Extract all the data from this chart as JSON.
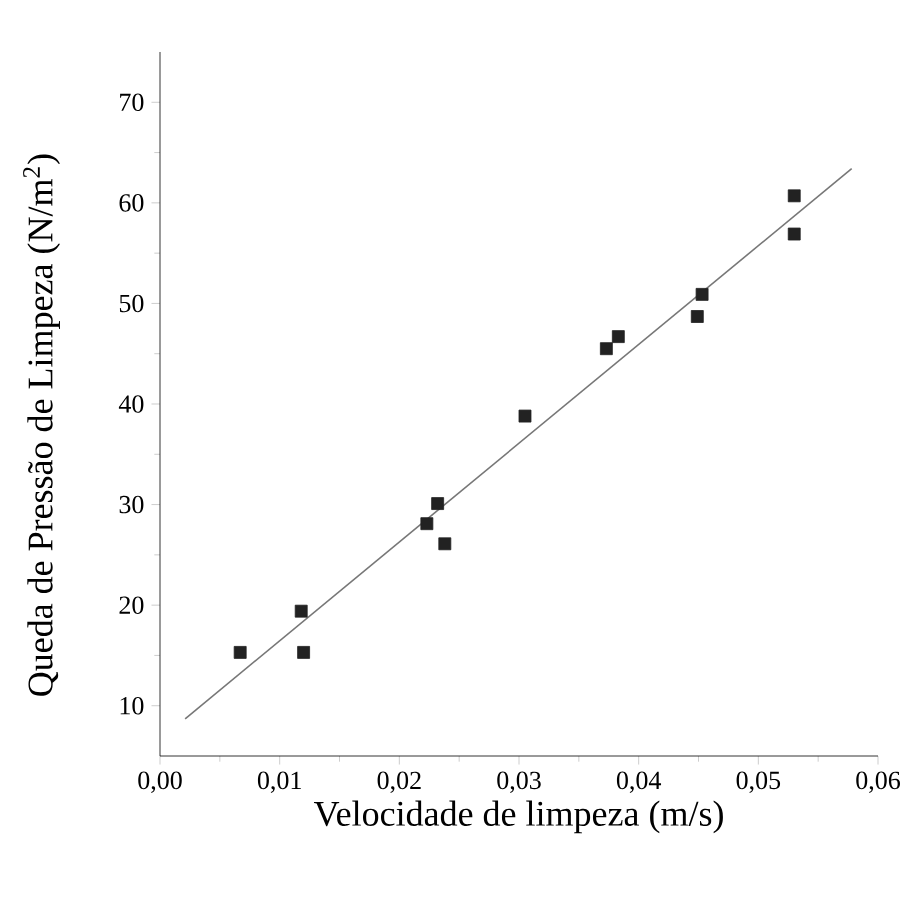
{
  "chart_data": {
    "type": "scatter",
    "xlabel": "Velocidade de limpeza (m/s)",
    "ylabel": "Queda de Pressão de Limpeza (N/m$^{2}$)",
    "xlim": [
      0,
      0.06
    ],
    "ylim": [
      5,
      75
    ],
    "xticks": [
      {
        "value": 0,
        "label": "0,00"
      },
      {
        "value": 0.01,
        "label": "0,01"
      },
      {
        "value": 0.02,
        "label": "0,02"
      },
      {
        "value": 0.03,
        "label": "0,03"
      },
      {
        "value": 0.04,
        "label": "0,04"
      },
      {
        "value": 0.05,
        "label": "0,05"
      },
      {
        "value": 0.06,
        "label": "0,06"
      }
    ],
    "yticks": [
      10,
      20,
      30,
      40,
      50,
      60,
      70
    ],
    "marker": "square",
    "series": [
      {
        "color": "#222222",
        "x": [
          0.0067,
          0.0118,
          0.012,
          0.0223,
          0.0232,
          0.0238,
          0.0305,
          0.0373,
          0.0383,
          0.0449,
          0.0453,
          0.053,
          0.053
        ],
        "values": [
          15.3,
          19.4,
          15.3,
          28.1,
          30.1,
          26.1,
          38.8,
          45.5,
          46.7,
          48.7,
          50.9,
          60.7,
          56.9
        ]
      },
      {
        "type": "line",
        "color": "#777777",
        "marker": "none",
        "x": [
          0.0021,
          0.0578
        ],
        "values": [
          8.7,
          63.4
        ]
      }
    ]
  }
}
